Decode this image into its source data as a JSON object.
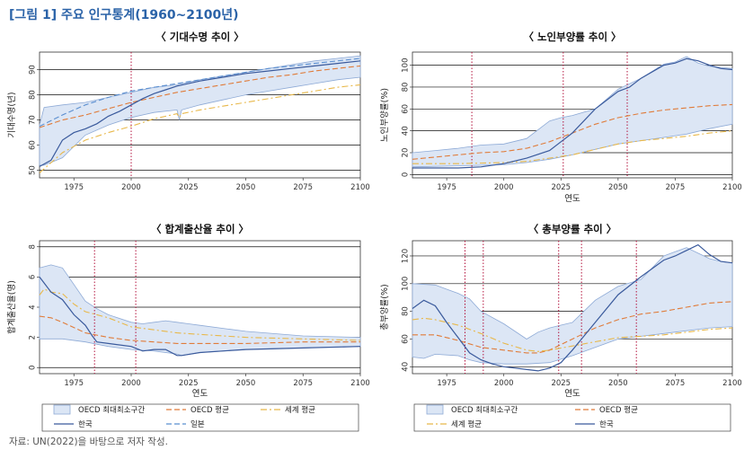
{
  "figure_title": "[그림 1] 주요 인구통계(1960~2100년)",
  "source_note": "자료: UN(2022)을 바탕으로 저자 작성.",
  "colors": {
    "band_fill": "#dce6f5",
    "band_stroke": "#8eaad6",
    "korea": "#3a5a9c",
    "japan": "#5b8fd0",
    "oecd_mean": "#e07b39",
    "world_mean": "#e8b84a",
    "vline": "#b3123c"
  },
  "chart_data": [
    {
      "type": "line",
      "title": "〈 기대수명 추이 〉",
      "xlabel": "",
      "ylabel": "기대수명(년)",
      "xlim": [
        1960,
        2100
      ],
      "ylim": [
        47,
        97
      ],
      "xticks": [
        1975,
        2000,
        2025,
        2050,
        2075,
        2100
      ],
      "yticks": [
        50,
        60,
        70,
        80,
        90
      ],
      "grid": true,
      "vlines": [
        2000
      ],
      "series": [
        {
          "name": "OECD 최대최소구간 (상한)",
          "x": [
            1960,
            1962,
            1970,
            1980,
            1990,
            2000,
            2010,
            2020,
            2030,
            2040,
            2050,
            2060,
            2070,
            2080,
            2090,
            2100
          ],
          "values": [
            68,
            75,
            76,
            77,
            79,
            81,
            83,
            84,
            86,
            87.5,
            89,
            90.5,
            92,
            93.5,
            94.5,
            95.5
          ]
        },
        {
          "name": "OECD 최대최소구간 (하한)",
          "x": [
            1960,
            1962,
            1970,
            1980,
            1990,
            2000,
            2010,
            2020,
            2021,
            2022,
            2030,
            2040,
            2050,
            2060,
            2070,
            2080,
            2090,
            2100
          ],
          "values": [
            52,
            52,
            55,
            64,
            68,
            71,
            73,
            74,
            70,
            74,
            76,
            78,
            80,
            81.5,
            83,
            84.5,
            86,
            87
          ]
        },
        {
          "name": "OECD 평균",
          "x": [
            1960,
            1970,
            1980,
            1990,
            2000,
            2010,
            2020,
            2030,
            2040,
            2050,
            2060,
            2070,
            2080,
            2090,
            2100
          ],
          "values": [
            67,
            70,
            72,
            74.5,
            77,
            79,
            81,
            82.5,
            84,
            85.5,
            87,
            88,
            89.5,
            90.5,
            91.5
          ]
        },
        {
          "name": "세계 평균",
          "x": [
            1960,
            1970,
            1980,
            1990,
            2000,
            2010,
            2020,
            2021,
            2022,
            2030,
            2040,
            2050,
            2060,
            2070,
            2080,
            2090,
            2100
          ],
          "values": [
            49,
            57,
            62,
            65,
            67.5,
            70.5,
            72.5,
            71,
            72.5,
            74,
            75.5,
            77,
            78.5,
            80,
            81.5,
            83,
            84
          ]
        },
        {
          "name": "한국",
          "x": [
            1960,
            1965,
            1970,
            1975,
            1980,
            1985,
            1990,
            1995,
            2000,
            2005,
            2010,
            2015,
            2020,
            2030,
            2040,
            2050,
            2060,
            2070,
            2080,
            2090,
            2100
          ],
          "values": [
            51.5,
            54,
            62,
            65,
            66.5,
            68.5,
            71.5,
            73.5,
            76,
            78.5,
            80.5,
            82,
            83.5,
            85.5,
            87,
            88.5,
            89.5,
            90.5,
            91.5,
            92.5,
            93.5
          ]
        },
        {
          "name": "일본",
          "x": [
            1960,
            1970,
            1980,
            1990,
            2000,
            2010,
            2020,
            2030,
            2040,
            2050,
            2060,
            2070,
            2080,
            2090,
            2100
          ],
          "values": [
            67.5,
            72,
            76,
            79,
            81.5,
            83,
            84.5,
            86,
            87.5,
            89,
            90.5,
            91.5,
            92.5,
            93.5,
            94.5
          ]
        }
      ]
    },
    {
      "type": "line",
      "title": "〈 노인부양률 추이 〉",
      "xlabel": "연도",
      "ylabel": "노인부양률(%)",
      "xlim": [
        1960,
        2100
      ],
      "ylim": [
        -3,
        112
      ],
      "xticks": [
        1975,
        2000,
        2025,
        2050,
        2075,
        2100
      ],
      "yticks": [
        0,
        20,
        40,
        60,
        80,
        100
      ],
      "grid": true,
      "vlines": [
        1986,
        2026,
        2054
      ],
      "series": [
        {
          "name": "OECD 최대최소구간 (상한)",
          "x": [
            1960,
            1970,
            1980,
            1990,
            2000,
            2010,
            2020,
            2025,
            2030,
            2040,
            2050,
            2060,
            2070,
            2075,
            2080,
            2085,
            2090,
            2095,
            2100
          ],
          "values": [
            20,
            22,
            24,
            27,
            28,
            33,
            49,
            52,
            54,
            60,
            78,
            88,
            101,
            103,
            108,
            102,
            99,
            98,
            97
          ]
        },
        {
          "name": "OECD 최대최소구간 (하한)",
          "x": [
            1960,
            1980,
            2000,
            2010,
            2020,
            2030,
            2040,
            2050,
            2060,
            2070,
            2080,
            2090,
            2100
          ],
          "values": [
            7,
            8,
            9,
            11,
            14,
            18,
            23,
            28,
            31,
            34,
            37,
            42,
            46
          ]
        },
        {
          "name": "OECD 평균",
          "x": [
            1960,
            1970,
            1980,
            1990,
            2000,
            2010,
            2020,
            2030,
            2040,
            2050,
            2060,
            2070,
            2080,
            2090,
            2100
          ],
          "values": [
            14,
            16,
            18,
            20,
            21,
            24,
            30,
            38,
            46,
            52,
            56,
            59,
            61,
            63,
            64
          ]
        },
        {
          "name": "세계 평균",
          "x": [
            1960,
            1980,
            2000,
            2010,
            2020,
            2030,
            2040,
            2050,
            2060,
            2070,
            2080,
            2090,
            2100
          ],
          "values": [
            10,
            10,
            11,
            12,
            15,
            18,
            23,
            28,
            31,
            33,
            35,
            38,
            40
          ]
        },
        {
          "name": "한국",
          "x": [
            1960,
            1970,
            1980,
            1990,
            2000,
            2010,
            2020,
            2025,
            2030,
            2040,
            2050,
            2055,
            2060,
            2070,
            2075,
            2080,
            2085,
            2090,
            2095,
            2100
          ],
          "values": [
            6,
            6,
            6,
            7,
            10,
            15,
            22,
            30,
            38,
            60,
            76,
            80,
            88,
            100,
            102,
            106,
            104,
            100,
            97,
            96
          ]
        }
      ]
    },
    {
      "type": "line",
      "title": "〈 합계출산율 추이 〉",
      "xlabel": "연도",
      "ylabel": "합계출산율(명)",
      "xlim": [
        1960,
        2100
      ],
      "ylim": [
        -0.4,
        8.4
      ],
      "xticks": [
        1975,
        2000,
        2025,
        2050,
        2075,
        2100
      ],
      "yticks": [
        0,
        2,
        4,
        6,
        8
      ],
      "grid": true,
      "vlines": [
        1984,
        2002
      ],
      "series": [
        {
          "name": "OECD 최대최소구간 (상한)",
          "x": [
            1960,
            1965,
            1970,
            1975,
            1980,
            1985,
            1990,
            2000,
            2005,
            2010,
            2015,
            2020,
            2025,
            2030,
            2050,
            2075,
            2100
          ],
          "values": [
            6.6,
            6.8,
            6.6,
            5.5,
            4.4,
            3.9,
            3.5,
            3.0,
            2.9,
            3.0,
            3.1,
            3.0,
            2.9,
            2.8,
            2.4,
            2.1,
            2.0
          ]
        },
        {
          "name": "OECD 최대최소구간 (하한)",
          "x": [
            1960,
            1970,
            1980,
            1990,
            2000,
            2010,
            2020,
            2022,
            2030,
            2050,
            2075,
            2100
          ],
          "values": [
            1.9,
            1.9,
            1.7,
            1.4,
            1.2,
            1.1,
            0.9,
            0.8,
            1.0,
            1.2,
            1.3,
            1.4
          ]
        },
        {
          "name": "OECD 평균",
          "x": [
            1960,
            1965,
            1970,
            1980,
            1990,
            2000,
            2010,
            2020,
            2030,
            2050,
            2075,
            2100
          ],
          "values": [
            3.4,
            3.3,
            3.0,
            2.3,
            2.0,
            1.8,
            1.7,
            1.6,
            1.6,
            1.6,
            1.7,
            1.7
          ]
        },
        {
          "name": "세계 평균",
          "x": [
            1960,
            1962,
            1965,
            1970,
            1975,
            1980,
            1990,
            2000,
            2010,
            2020,
            2030,
            2050,
            2075,
            2100
          ],
          "values": [
            4.8,
            5.2,
            5.0,
            4.9,
            4.2,
            3.7,
            3.3,
            2.7,
            2.5,
            2.3,
            2.2,
            2.0,
            1.9,
            1.8
          ]
        },
        {
          "name": "한국",
          "x": [
            1960,
            1965,
            1970,
            1975,
            1980,
            1983,
            1985,
            1990,
            2000,
            2005,
            2010,
            2015,
            2020,
            2022,
            2030,
            2050,
            2075,
            2100
          ],
          "values": [
            6.0,
            5.0,
            4.5,
            3.5,
            2.8,
            2.1,
            1.7,
            1.6,
            1.4,
            1.1,
            1.2,
            1.2,
            0.8,
            0.8,
            1.0,
            1.2,
            1.3,
            1.4
          ]
        }
      ]
    },
    {
      "type": "line",
      "title": "〈 총부양률 추이 〉",
      "xlabel": "연도",
      "ylabel": "총부양률(%)",
      "xlim": [
        1960,
        2100
      ],
      "ylim": [
        35,
        131
      ],
      "xticks": [
        1975,
        2000,
        2025,
        2050,
        2075,
        2100
      ],
      "yticks": [
        40,
        60,
        80,
        100,
        120
      ],
      "grid": true,
      "vlines": [
        1983,
        1991,
        2024,
        2034,
        2058
      ],
      "series": [
        {
          "name": "OECD 최대최소구간 (상한)",
          "x": [
            1960,
            1970,
            1975,
            1980,
            1985,
            1990,
            2000,
            2010,
            2015,
            2020,
            2025,
            2030,
            2040,
            2050,
            2060,
            2070,
            2075,
            2080,
            2085,
            2090,
            2095,
            2100
          ],
          "values": [
            100,
            99,
            96,
            93,
            89,
            80,
            71,
            60,
            65,
            68,
            70,
            72,
            88,
            98,
            103,
            120,
            123,
            126,
            122,
            118,
            116,
            115
          ]
        },
        {
          "name": "OECD 최대최소구간 (하한)",
          "x": [
            1960,
            1965,
            1970,
            1980,
            1985,
            1990,
            2000,
            2010,
            2020,
            2030,
            2040,
            2050,
            2060,
            2070,
            2080,
            2090,
            2100
          ],
          "values": [
            47,
            46,
            49,
            48,
            45,
            43,
            42,
            42,
            43,
            48,
            54,
            60,
            62,
            64,
            66,
            68,
            69
          ]
        },
        {
          "name": "OECD 평균",
          "x": [
            1960,
            1970,
            1980,
            1990,
            2000,
            2010,
            2015,
            2020,
            2025,
            2030,
            2040,
            2050,
            2060,
            2070,
            2080,
            2090,
            2100
          ],
          "values": [
            63,
            63,
            59,
            54,
            52,
            50,
            50,
            52,
            56,
            60,
            68,
            74,
            78,
            80,
            83,
            86,
            87
          ]
        },
        {
          "name": "세계 평균",
          "x": [
            1960,
            1965,
            1970,
            1980,
            1990,
            2000,
            2010,
            2015,
            2020,
            2030,
            2040,
            2050,
            2060,
            2070,
            2080,
            2090,
            2100
          ],
          "values": [
            74,
            75,
            74,
            70,
            64,
            57,
            52,
            51,
            52,
            55,
            58,
            61,
            62,
            63,
            65,
            67,
            68
          ]
        },
        {
          "name": "한국",
          "x": [
            1960,
            1965,
            1970,
            1975,
            1980,
            1985,
            1990,
            1995,
            2000,
            2005,
            2010,
            2015,
            2020,
            2025,
            2030,
            2040,
            2050,
            2060,
            2070,
            2075,
            2080,
            2085,
            2090,
            2095,
            2100
          ],
          "values": [
            82,
            88,
            84,
            72,
            61,
            50,
            45,
            42,
            40,
            39,
            38,
            37,
            39,
            43,
            52,
            72,
            92,
            105,
            117,
            120,
            124,
            128,
            121,
            116,
            115
          ]
        }
      ]
    }
  ],
  "legends": [
    {
      "items": [
        {
          "label": "OECD 최대최소구간",
          "kind": "band"
        },
        {
          "label": "OECD 평균",
          "kind": "oecd"
        },
        {
          "label": "세계 평균",
          "kind": "world"
        },
        {
          "label": "한국",
          "kind": "korea"
        },
        {
          "label": "일본",
          "kind": "japan"
        }
      ]
    },
    {
      "items": [
        {
          "label": "OECD 최대최소구간",
          "kind": "band"
        },
        {
          "label": "OECD 평균",
          "kind": "oecd"
        },
        {
          "label": "세계 평균",
          "kind": "world"
        },
        {
          "label": "한국",
          "kind": "korea"
        }
      ]
    }
  ]
}
